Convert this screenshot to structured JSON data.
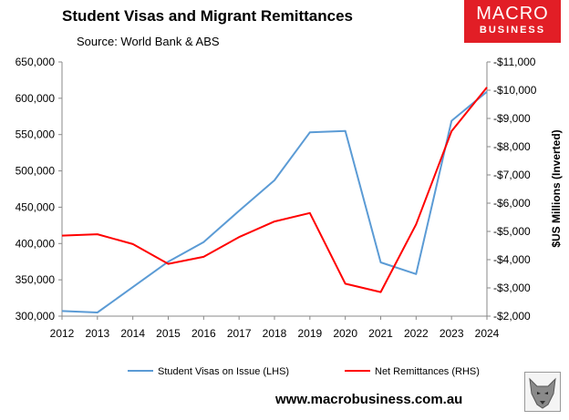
{
  "chart_data": {
    "type": "line",
    "title": "Student Visas and Migrant Remittances",
    "subtitle": "Source: World Bank & ABS",
    "x": [
      2012,
      2013,
      2014,
      2015,
      2016,
      2017,
      2018,
      2019,
      2020,
      2021,
      2022,
      2023,
      2024
    ],
    "xlim": [
      2012,
      2024
    ],
    "y_left": {
      "ylim": [
        300000,
        650000
      ],
      "ticks": [
        "300,000",
        "350,000",
        "400,000",
        "450,000",
        "500,000",
        "550,000",
        "600,000",
        "650,000"
      ],
      "label": ""
    },
    "y_right": {
      "ylim": [
        -2000,
        -11000
      ],
      "inverted": true,
      "label": "$US Millions (Inverted)",
      "ticks": [
        "-$2,000",
        "-$3,000",
        "-$4,000",
        "-$5,000",
        "-$6,000",
        "-$7,000",
        "-$8,000",
        "-$9,000",
        "-$10,000",
        "-$11,000"
      ]
    },
    "x_ticks": [
      "2012",
      "2013",
      "2014",
      "2015",
      "2016",
      "2017",
      "2018",
      "2019",
      "2020",
      "2021",
      "2022",
      "2023",
      "2024"
    ],
    "series": [
      {
        "name": "Student Visas on Issue (LHS)",
        "axis": "left",
        "color": "#5b9bd5",
        "x": [
          2012,
          2013,
          2014,
          2015,
          2016,
          2017,
          2018,
          2019,
          2020,
          2021,
          2022,
          2023,
          2024
        ],
        "values": [
          307000,
          305000,
          340000,
          375000,
          402000,
          445000,
          487000,
          553000,
          555000,
          374000,
          358000,
          569000,
          609000
        ]
      },
      {
        "name": "Net Remittances (RHS)",
        "axis": "right",
        "color": "#ff0000",
        "x": [
          2012,
          2013,
          2014,
          2015,
          2016,
          2017,
          2018,
          2019,
          2020,
          2021,
          2022,
          2023,
          2024
        ],
        "values": [
          -4850,
          -4900,
          -4550,
          -3850,
          -4100,
          -4800,
          -5350,
          -5650,
          -3150,
          -2850,
          -5250,
          -8550,
          -10100
        ]
      }
    ],
    "legend_placement": "bottom",
    "grid": false
  },
  "branding": {
    "logo_line1": "MACRO",
    "logo_line2": "BUSINESS",
    "website": "www.macrobusiness.com.au",
    "logo_color": "#e21e26"
  }
}
